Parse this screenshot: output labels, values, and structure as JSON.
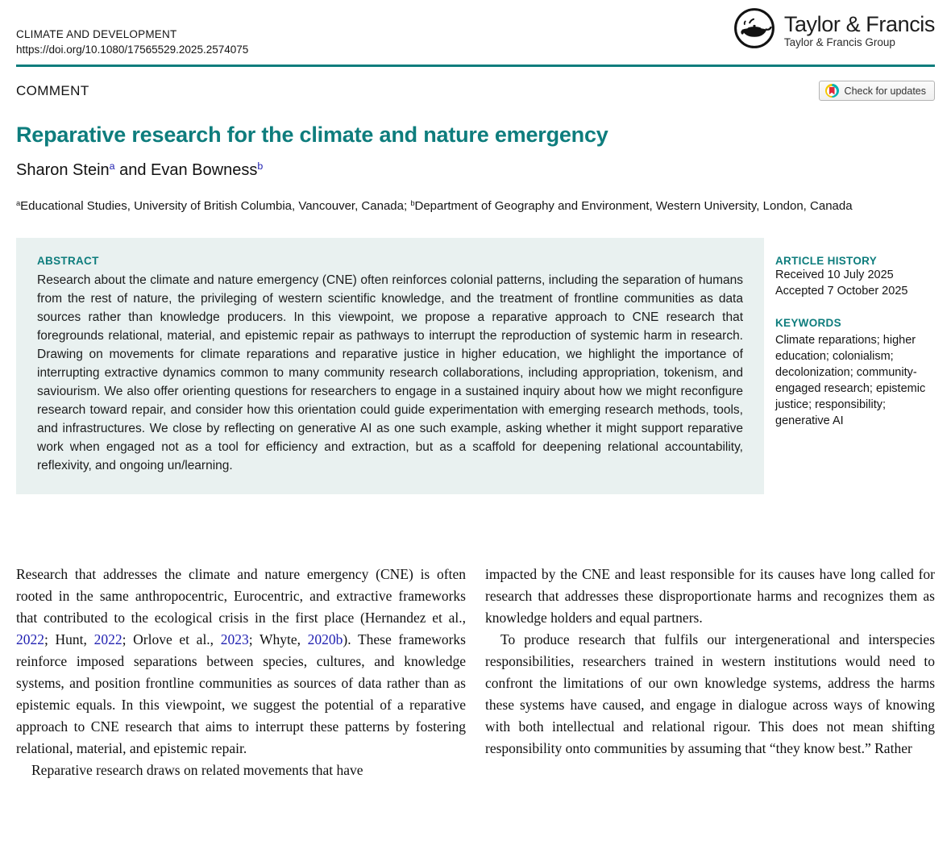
{
  "header": {
    "journal_name": "CLIMATE AND DEVELOPMENT",
    "doi_url": "https://doi.org/10.1080/17565529.2025.2574075",
    "logo_title": "Taylor & Francis",
    "logo_subtitle": "Taylor & Francis Group"
  },
  "article_bar": {
    "section_label": "COMMENT",
    "check_updates_label": "Check for updates"
  },
  "title": "Reparative research for the climate and nature emergency",
  "authors_segments": [
    {
      "t": "Sharon Stein"
    },
    {
      "t": "a",
      "c": "sup-link"
    },
    {
      "t": " and "
    },
    {
      "t": "Evan Bowness"
    },
    {
      "t": "b",
      "c": "sup-link"
    }
  ],
  "affiliation_segments": [
    {
      "t": "a",
      "c": "sup"
    },
    {
      "t": "Educational Studies, University of British Columbia, Vancouver, Canada; "
    },
    {
      "t": "b",
      "c": "sup"
    },
    {
      "t": "Department of Geography and Environment, Western University, London, Canada"
    }
  ],
  "abstract": {
    "heading": "ABSTRACT",
    "text": "Research about the climate and nature emergency (CNE) often reinforces colonial patterns, including the separation of humans from the rest of nature, the privileging of western scientific knowledge, and the treatment of frontline communities as data sources rather than knowledge producers. In this viewpoint, we propose a reparative approach to CNE research that foregrounds relational, material, and epistemic repair as pathways to interrupt the reproduction of systemic harm in research. Drawing on movements for climate reparations and reparative justice in higher education, we highlight the importance of interrupting extractive dynamics common to many community research collaborations, including appropriation, tokenism, and saviourism. We also offer orienting questions for researchers to engage in a sustained inquiry about how we might reconfigure research toward repair, and consider how this orientation could guide experimentation with emerging research methods, tools, and infrastructures. We close by reflecting on generative AI as one such example, asking whether it might support reparative work when engaged not as a tool for efficiency and extraction, but as a scaffold for deepening relational accountability, reflexivity, and ongoing un/learning."
  },
  "sidebar": {
    "article_history_heading": "ARTICLE HISTORY",
    "article_history": [
      "Received 10 July 2025",
      "Accepted 7 October 2025"
    ],
    "keywords_heading": "KEYWORDS",
    "keywords": "Climate reparations; higher education; colonialism; decolonization; community-engaged research; epistemic justice; responsibility; generative AI"
  },
  "body": {
    "left_column": [
      {
        "cls": "",
        "segments": [
          {
            "t": "Research that addresses the climate and nature emergency (CNE) is often rooted in the same anthropocentric, Eurocentric, and extractive frameworks that contributed to the ecological crisis in the first place (Hernandez et al., "
          },
          {
            "t": "2022",
            "c": "cite"
          },
          {
            "t": "; Hunt, "
          },
          {
            "t": "2022",
            "c": "cite"
          },
          {
            "t": "; Orlove et al., "
          },
          {
            "t": "2023",
            "c": "cite"
          },
          {
            "t": "; Whyte, "
          },
          {
            "t": "2020b",
            "c": "cite"
          },
          {
            "t": "). These frameworks reinforce imposed separations between species, cultures, and knowledge systems, and position frontline communities as sources of data rather than as epistemic equals. In this viewpoint, we suggest the potential of a reparative approach to CNE research that aims to interrupt these patterns by fostering relational, material, and epistemic repair."
          }
        ]
      },
      {
        "cls": "indent",
        "segments": [
          {
            "t": "Reparative research draws on related movements that have"
          }
        ]
      }
    ],
    "right_column": [
      {
        "cls": "",
        "segments": [
          {
            "t": "impacted by the CNE and least responsible for its causes have long called for research that addresses these disproportionate harms and recognizes them as knowledge holders and equal partners."
          }
        ]
      },
      {
        "cls": "indent",
        "segments": [
          {
            "t": "To produce research that fulfils our intergenerational and interspecies responsibilities, researchers trained in western institutions would need to confront the limitations of our own knowledge systems, address the harms these systems have caused, and engage in dialogue across ways of knowing with both intellectual and relational rigour. This does not mean shifting responsibility onto communities by assuming that “they know best.” Rather"
          }
        ]
      }
    ]
  },
  "colors": {
    "accent_teal": "#0e7d7d",
    "link_blue": "#2222b2",
    "abstract_background": "#e9f1f0"
  }
}
